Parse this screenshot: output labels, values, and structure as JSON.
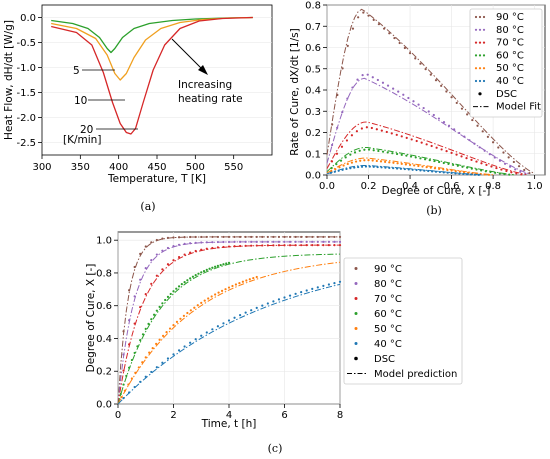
{
  "chart_data": [
    {
      "id": "a",
      "caption": "(a)",
      "type": "line",
      "xlabel": "Temperature, T [K]",
      "ylabel": "Heat Flow, dH/dt [W/g]",
      "xlim": [
        300,
        600
      ],
      "ylim": [
        -2.75,
        0.25
      ],
      "xticks": [
        300,
        350,
        400,
        450,
        500,
        550
      ],
      "yticks": [
        0.0,
        -0.5,
        -1.0,
        -1.5,
        -2.0,
        -2.5
      ],
      "series": [
        {
          "name": "5",
          "color": "#2ca02c",
          "x": [
            312,
            340,
            360,
            375,
            385,
            390,
            395,
            405,
            420,
            440,
            470,
            500,
            540,
            575
          ],
          "y": [
            -0.06,
            -0.12,
            -0.22,
            -0.4,
            -0.62,
            -0.7,
            -0.62,
            -0.4,
            -0.22,
            -0.12,
            -0.06,
            -0.03,
            -0.01,
            0.0
          ]
        },
        {
          "name": "10",
          "color": "#f0a020",
          "x": [
            312,
            345,
            370,
            385,
            395,
            402,
            410,
            420,
            435,
            455,
            480,
            510,
            545,
            575
          ],
          "y": [
            -0.12,
            -0.22,
            -0.42,
            -0.75,
            -1.12,
            -1.25,
            -1.12,
            -0.8,
            -0.45,
            -0.22,
            -0.1,
            -0.04,
            -0.01,
            0.0
          ]
        },
        {
          "name": "20",
          "color": "#d62728",
          "x": [
            312,
            345,
            365,
            380,
            392,
            402,
            410,
            416,
            422,
            432,
            445,
            460,
            480,
            505,
            535,
            575
          ],
          "y": [
            -0.18,
            -0.3,
            -0.55,
            -1.1,
            -1.7,
            -2.12,
            -2.3,
            -2.33,
            -2.22,
            -1.7,
            -1.05,
            -0.55,
            -0.22,
            -0.07,
            -0.02,
            0.0
          ]
        }
      ],
      "annotations": [
        "5",
        "10",
        "20",
        "[K/min]",
        "Increasing",
        "heating rate"
      ]
    },
    {
      "id": "b",
      "caption": "(b)",
      "type": "scatter",
      "xlabel": "Degree of Cure, X [-]",
      "ylabel": "Rate of Cure, dX/dt [1/s]",
      "xlim": [
        0.0,
        1.05
      ],
      "ylim": [
        0.0,
        0.8
      ],
      "xticks": [
        0.0,
        0.2,
        0.4,
        0.6,
        0.8,
        1.0
      ],
      "yticks": [
        0.0,
        0.1,
        0.2,
        0.3,
        0.4,
        0.5,
        0.6,
        0.7,
        0.8
      ],
      "legend": {
        "placement": "right",
        "entries": [
          "90 °C",
          "80 °C",
          "70 °C",
          "60 °C",
          "50 °C",
          "40 °C",
          "DSC",
          "Model Fit"
        ]
      },
      "series": [
        {
          "name": "90 °C",
          "color": "#8c564b",
          "peak": 0.765,
          "fitpeak": 0.78,
          "xpk": 0.18,
          "xend": 1.0
        },
        {
          "name": "80 °C",
          "color": "#9467bd",
          "peak": 0.475,
          "fitpeak": 0.455,
          "xpk": 0.19,
          "xend": 0.98
        },
        {
          "name": "70 °C",
          "color": "#d62728",
          "peak": 0.225,
          "fitpeak": 0.25,
          "xpk": 0.2,
          "xend": 0.96
        },
        {
          "name": "60 °C",
          "color": "#2ca02c",
          "peak": 0.12,
          "fitpeak": 0.13,
          "xpk": 0.2,
          "xend": 0.9
        },
        {
          "name": "50 °C",
          "color": "#ff7f0e",
          "peak": 0.07,
          "fitpeak": 0.08,
          "xpk": 0.2,
          "xend": 0.8
        },
        {
          "name": "40 °C",
          "color": "#1f77b4",
          "peak": 0.04,
          "fitpeak": 0.045,
          "xpk": 0.2,
          "xend": 0.75
        }
      ]
    },
    {
      "id": "c",
      "caption": "(c)",
      "type": "scatter",
      "xlabel": "Time, t [h]",
      "ylabel": "Degree of Cure, X [-]",
      "xlim": [
        0,
        8
      ],
      "ylim": [
        0.0,
        1.05
      ],
      "xticks": [
        0,
        2,
        4,
        6,
        8
      ],
      "yticks": [
        0.0,
        0.2,
        0.4,
        0.6,
        0.8,
        1.0
      ],
      "legend": {
        "placement": "right",
        "entries": [
          "90 °C",
          "80 °C",
          "70 °C",
          "60 °C",
          "50 °C",
          "40 °C",
          "DSC",
          "Model prediction"
        ]
      },
      "series": [
        {
          "name": "90 °C",
          "color": "#8c564b",
          "xmax": 1.02,
          "tau": 0.35,
          "tend": 8
        },
        {
          "name": "80 °C",
          "color": "#9467bd",
          "xmax": 0.99,
          "tau": 0.55,
          "tend": 8
        },
        {
          "name": "70 °C",
          "color": "#d62728",
          "xmax": 0.97,
          "tau": 0.85,
          "tend": 8
        },
        {
          "name": "60 °C",
          "color": "#2ca02c",
          "xmax": 0.92,
          "tau": 1.45,
          "tend": 4
        },
        {
          "name": "50 °C",
          "color": "#ff7f0e",
          "xmax": 0.92,
          "tau": 2.7,
          "tend": 5
        },
        {
          "name": "40 °C",
          "color": "#1f77b4",
          "xmax": 0.95,
          "tau": 5.2,
          "tend": 8
        }
      ]
    }
  ]
}
